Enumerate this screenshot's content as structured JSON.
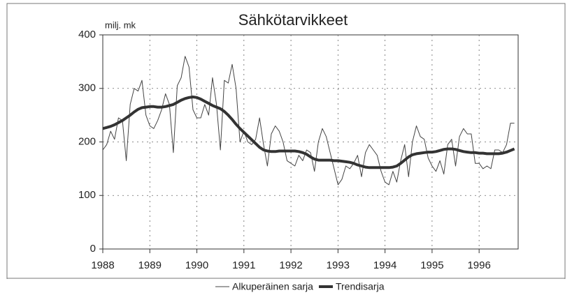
{
  "chart_data": {
    "type": "line",
    "title": "Sähkötarvikkeet",
    "y_label": "milj. mk",
    "x": [
      1988,
      1988.083,
      1988.167,
      1988.25,
      1988.333,
      1988.417,
      1988.5,
      1988.583,
      1988.667,
      1988.75,
      1988.833,
      1988.917,
      1989,
      1989.083,
      1989.167,
      1989.25,
      1989.333,
      1989.417,
      1989.5,
      1989.583,
      1989.667,
      1989.75,
      1989.833,
      1989.917,
      1990,
      1990.083,
      1990.167,
      1990.25,
      1990.333,
      1990.417,
      1990.5,
      1990.583,
      1990.667,
      1990.75,
      1990.833,
      1990.917,
      1991,
      1991.083,
      1991.167,
      1991.25,
      1991.333,
      1991.417,
      1991.5,
      1991.583,
      1991.667,
      1991.75,
      1991.833,
      1991.917,
      1992,
      1992.083,
      1992.167,
      1992.25,
      1992.333,
      1992.417,
      1992.5,
      1992.583,
      1992.667,
      1992.75,
      1992.833,
      1992.917,
      1993,
      1993.083,
      1993.167,
      1993.25,
      1993.333,
      1993.417,
      1993.5,
      1993.583,
      1993.667,
      1993.75,
      1993.833,
      1993.917,
      1994,
      1994.083,
      1994.167,
      1994.25,
      1994.333,
      1994.417,
      1994.5,
      1994.583,
      1994.667,
      1994.75,
      1994.833,
      1994.917,
      1995,
      1995.083,
      1995.167,
      1995.25,
      1995.333,
      1995.417,
      1995.5,
      1995.583,
      1995.667,
      1995.75,
      1995.833,
      1995.917,
      1996,
      1996.083,
      1996.167,
      1996.25,
      1996.333,
      1996.417,
      1996.5,
      1996.583,
      1996.667,
      1996.75
    ],
    "series": [
      {
        "name": "Alkuperäinen sarja",
        "color": "#444444",
        "line_width": 1,
        "values": [
          185,
          195,
          220,
          205,
          245,
          240,
          165,
          270,
          300,
          295,
          315,
          250,
          230,
          225,
          240,
          260,
          290,
          270,
          180,
          305,
          320,
          360,
          340,
          260,
          245,
          245,
          270,
          250,
          320,
          270,
          185,
          315,
          310,
          345,
          300,
          200,
          220,
          200,
          195,
          205,
          245,
          195,
          155,
          215,
          230,
          220,
          200,
          165,
          160,
          155,
          175,
          165,
          185,
          180,
          145,
          200,
          225,
          210,
          180,
          150,
          120,
          130,
          155,
          150,
          160,
          175,
          135,
          180,
          195,
          185,
          175,
          145,
          125,
          120,
          145,
          125,
          165,
          195,
          135,
          200,
          230,
          210,
          205,
          170,
          155,
          145,
          165,
          140,
          195,
          205,
          155,
          210,
          225,
          215,
          215,
          160,
          160,
          150,
          155,
          150,
          185,
          185,
          180,
          195,
          235,
          235
        ]
      },
      {
        "name": "Trendisarja",
        "color": "#333333",
        "line_width": 4,
        "values": [
          225,
          227,
          229,
          232,
          236,
          240,
          245,
          250,
          256,
          261,
          264,
          265,
          266,
          266,
          265,
          265,
          266,
          268,
          270,
          274,
          278,
          281,
          283,
          284,
          283,
          280,
          276,
          272,
          268,
          265,
          262,
          257,
          250,
          242,
          233,
          225,
          218,
          211,
          204,
          197,
          190,
          185,
          183,
          182,
          182,
          183,
          183,
          183,
          183,
          183,
          182,
          180,
          177,
          172,
          168,
          166,
          166,
          166,
          166,
          165,
          165,
          164,
          163,
          162,
          160,
          157,
          155,
          153,
          152,
          152,
          152,
          152,
          152,
          152,
          153,
          155,
          160,
          166,
          172,
          176,
          178,
          179,
          180,
          181,
          181,
          182,
          184,
          186,
          187,
          187,
          186,
          184,
          182,
          181,
          180,
          180,
          179,
          179,
          178,
          178,
          178,
          178,
          179,
          181,
          184,
          187
        ]
      }
    ],
    "xlim": [
      1988,
      1996.83
    ],
    "xticks": [
      1988,
      1989,
      1990,
      1991,
      1992,
      1993,
      1994,
      1995,
      1996
    ],
    "ylim": [
      0,
      400
    ],
    "yticks": [
      0,
      100,
      200,
      300,
      400
    ],
    "grid": true
  }
}
